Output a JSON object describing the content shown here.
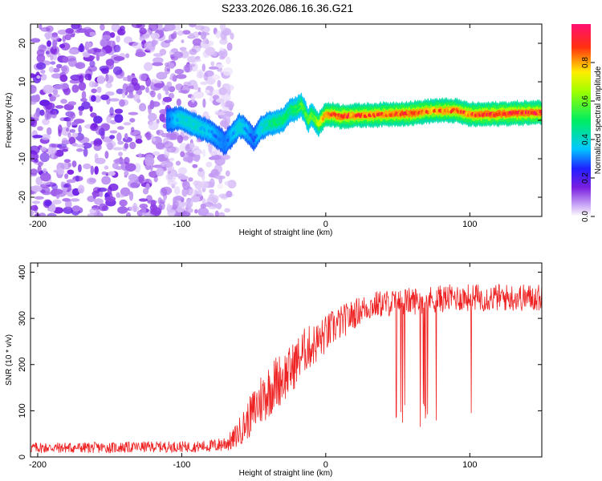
{
  "figure_title": "S233.2026.086.16.36.G21",
  "chart_data": [
    {
      "type": "heatmap",
      "title": "S233.2026.086.16.36.G21",
      "xlabel": "Height of straight line (km)",
      "ylabel": "Frequency (Hz)",
      "xlim": [
        -205,
        150
      ],
      "ylim": [
        -25,
        25
      ],
      "xticks": [
        -200,
        -100,
        0,
        100
      ],
      "yticks": [
        -20,
        -10,
        0,
        10,
        20
      ],
      "colorbar": {
        "label": "Normalized spectral amplitude",
        "range": [
          0,
          1
        ],
        "ticks": [
          0.0,
          0.2,
          0.4,
          0.6,
          0.8
        ],
        "tick_labels": [
          "0.0",
          "0.2",
          "0.4",
          "0.6",
          "0.8"
        ]
      },
      "scattered_noise_region_x": [
        -205,
        -65
      ],
      "ridge": {
        "x": [
          -110,
          -100,
          -90,
          -80,
          -70,
          -60,
          -55,
          -50,
          -45,
          -40,
          -35,
          -30,
          -25,
          -20,
          -17,
          -15,
          -12,
          -10,
          -5,
          -3,
          0,
          5,
          10,
          20,
          40,
          60,
          75,
          80,
          90,
          100,
          110,
          130,
          150
        ],
        "freq": [
          0,
          0.5,
          -1.5,
          -3,
          -6,
          -1.5,
          -2.5,
          -5,
          -2,
          -1,
          -0.5,
          0,
          2.5,
          3,
          4,
          2.5,
          0,
          1.5,
          -1,
          0,
          1.5,
          1.5,
          1,
          1.2,
          1.5,
          1.8,
          2.5,
          2.5,
          2.5,
          1.5,
          1.5,
          1.8,
          2.0
        ],
        "amplitude": [
          0.3,
          0.4,
          0.4,
          0.35,
          0.3,
          0.4,
          0.35,
          0.3,
          0.4,
          0.45,
          0.5,
          0.5,
          0.5,
          0.55,
          0.6,
          0.55,
          0.6,
          0.6,
          0.7,
          0.85,
          0.9,
          0.9,
          0.95,
          0.9,
          0.9,
          0.95,
          0.85,
          0.9,
          0.9,
          0.9,
          0.95,
          0.95,
          0.95
        ]
      }
    },
    {
      "type": "line",
      "xlabel": "Height of straight line (km)",
      "ylabel": "SNR (10 * v/v)",
      "xlim": [
        -205,
        150
      ],
      "ylim": [
        0,
        420
      ],
      "xticks": [
        -200,
        -100,
        0,
        100
      ],
      "yticks": [
        0,
        100,
        200,
        300,
        400
      ],
      "series": [
        {
          "name": "SNR",
          "color": "#ee2222",
          "x": [
            -205,
            -180,
            -150,
            -120,
            -90,
            -75,
            -65,
            -55,
            -45,
            -35,
            -25,
            -15,
            -5,
            5,
            15,
            25,
            35,
            50,
            70,
            90,
            110,
            130,
            150
          ],
          "mean": [
            20,
            20,
            20,
            22,
            22,
            25,
            35,
            75,
            125,
            160,
            185,
            230,
            250,
            280,
            300,
            320,
            330,
            335,
            340,
            345,
            345,
            345,
            345
          ],
          "spread": [
            12,
            12,
            12,
            12,
            12,
            15,
            22,
            40,
            60,
            60,
            55,
            50,
            45,
            40,
            35,
            30,
            30,
            30,
            30,
            30,
            30,
            30,
            30
          ]
        }
      ],
      "dropouts_x_range": [
        48,
        103
      ],
      "dropout_min_values": [
        85,
        60
      ]
    }
  ],
  "colors": {
    "line": "#ee2222",
    "background": "#ffffff",
    "axis": "#000000"
  }
}
